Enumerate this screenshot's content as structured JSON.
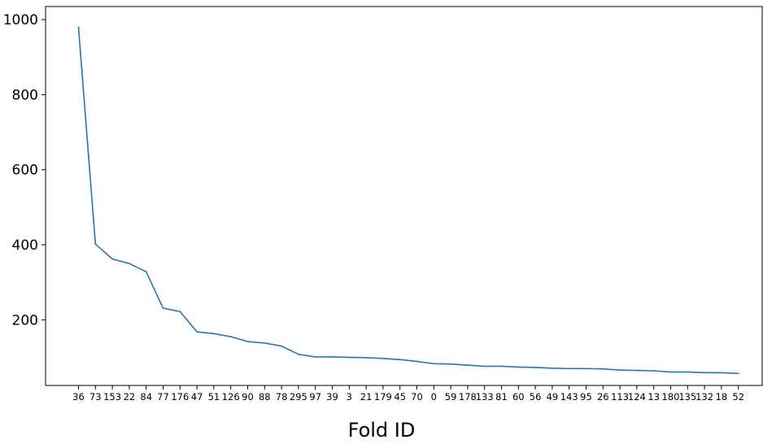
{
  "chart_data": {
    "type": "line",
    "title": "",
    "xlabel": "Fold ID",
    "ylabel": "",
    "ylim": [
      25,
      1035
    ],
    "y_ticks": [
      200,
      400,
      600,
      800,
      1000
    ],
    "grid": false,
    "colors": {
      "line": "#1f77b4",
      "axes": "#000000",
      "background": "#ffffff"
    },
    "categories": [
      "36",
      "73",
      "153",
      "22",
      "84",
      "77",
      "176",
      "47",
      "51",
      "126",
      "90",
      "88",
      "78",
      "295",
      "97",
      "39",
      "3",
      "21",
      "179",
      "45",
      "70",
      "0",
      "59",
      "178",
      "133",
      "81",
      "60",
      "56",
      "49",
      "143",
      "95",
      "26",
      "113",
      "124",
      "13",
      "180",
      "135",
      "132",
      "18",
      "52"
    ],
    "series": [
      {
        "values": [
          980,
          402,
          362,
          350,
          328,
          231,
          222,
          168,
          163,
          155,
          142,
          138,
          130,
          108,
          101,
          101,
          100,
          99,
          97,
          94,
          89,
          83,
          82,
          79,
          76,
          76,
          74,
          73,
          71,
          70,
          70,
          69,
          66,
          65,
          64,
          61,
          61,
          59,
          59,
          57
        ]
      }
    ]
  }
}
